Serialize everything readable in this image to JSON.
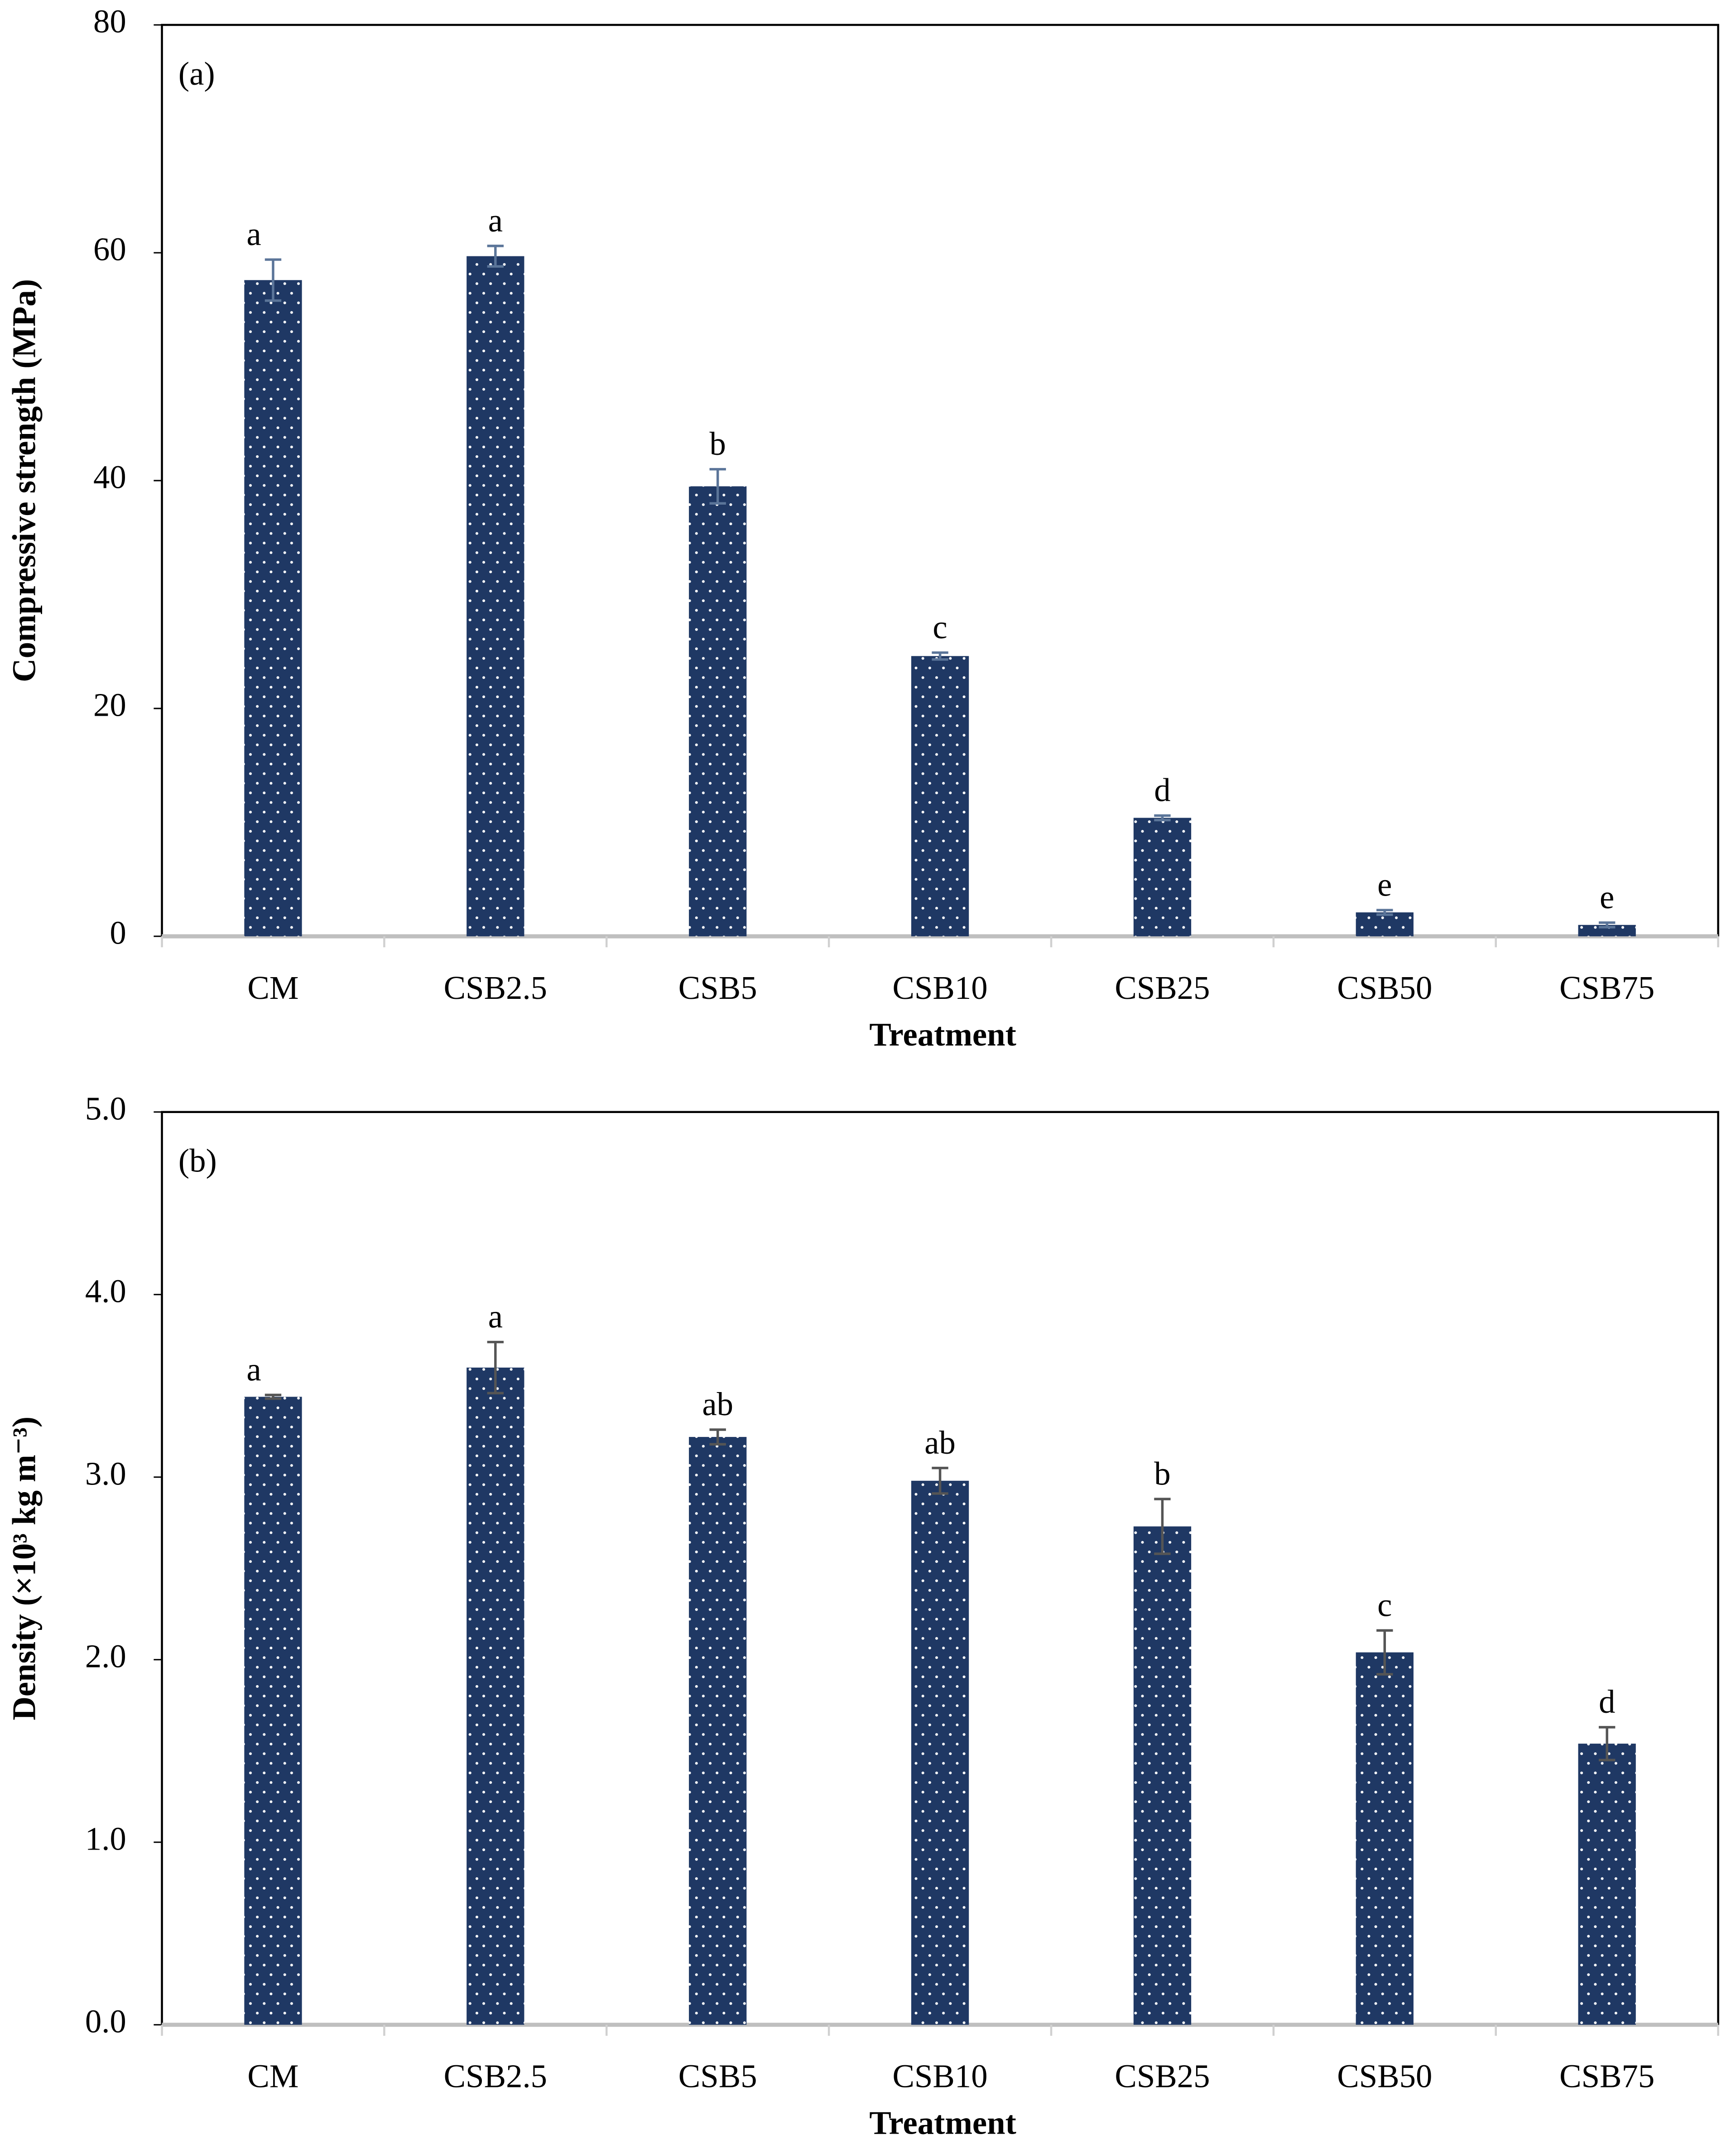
{
  "chart_data": [
    {
      "type": "bar",
      "panel_label": "(a)",
      "y_label": "Compressive strength (MPa)",
      "x_label": "Treatment",
      "categories": [
        "CM",
        "CSB2.5",
        "CSB5",
        "CSB10",
        "CSB25",
        "CSB50",
        "CSB75"
      ],
      "values": [
        57.6,
        59.7,
        39.5,
        24.6,
        10.4,
        2.1,
        1.0
      ],
      "errors": [
        1.8,
        0.9,
        1.5,
        0.3,
        0.2,
        0.2,
        0.2
      ],
      "annotations": [
        "a",
        "a",
        "b",
        "c",
        "d",
        "e",
        "e"
      ],
      "color": "#1f3864",
      "error_color": "#5b7599",
      "ylim": [
        0,
        80
      ],
      "yticks": [
        0,
        20,
        40,
        60,
        80
      ]
    },
    {
      "type": "bar",
      "panel_label": "(b)",
      "y_label": "Density (×10³ kg m⁻³)",
      "x_label": "Treatment",
      "categories": [
        "CM",
        "CSB2.5",
        "CSB5",
        "CSB10",
        "CSB25",
        "CSB50",
        "CSB75"
      ],
      "values": [
        3.44,
        3.6,
        3.22,
        2.98,
        2.73,
        2.04,
        1.54
      ],
      "errors": [
        0.01,
        0.14,
        0.04,
        0.07,
        0.15,
        0.12,
        0.09
      ],
      "annotations": [
        "a",
        "a",
        "ab",
        "ab",
        "b",
        "c",
        "d"
      ],
      "color": "#1f3864",
      "error_color": "#555555",
      "ylim": [
        0,
        5
      ],
      "yticks": [
        {
          "value": 0,
          "label": "0.0"
        },
        {
          "value": 1,
          "label": "1.0"
        },
        {
          "value": 2,
          "label": "2.0"
        },
        {
          "value": 3,
          "label": "3.0"
        },
        {
          "value": 4,
          "label": "4.0"
        },
        {
          "value": 5,
          "label": "5.0"
        }
      ]
    }
  ]
}
